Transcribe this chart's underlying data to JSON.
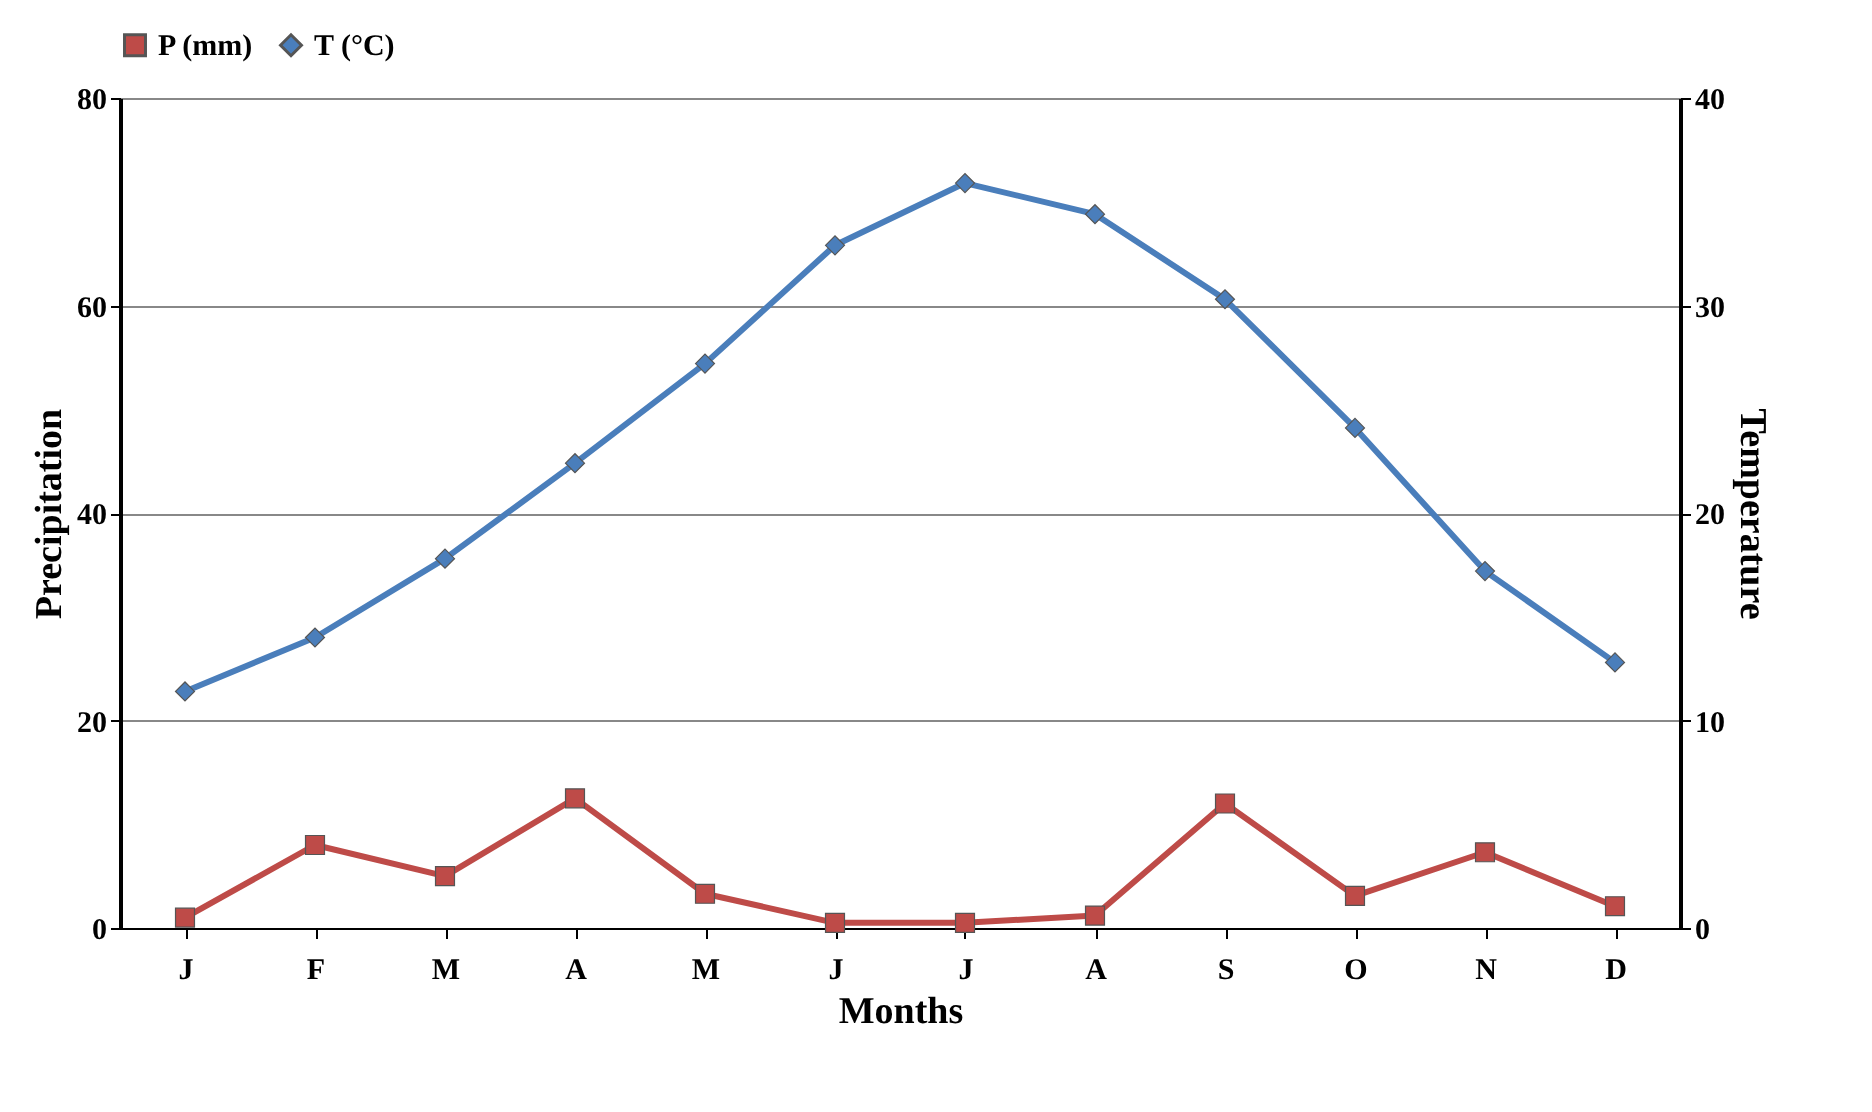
{
  "chart_data": {
    "type": "line",
    "xlabel": "Months",
    "ylabel": "Precipitation",
    "y2label": "Temperature",
    "categories": [
      "J",
      "F",
      "M",
      "A",
      "M",
      "J",
      "J",
      "A",
      "S",
      "O",
      "N",
      "D"
    ],
    "series": [
      {
        "name": "P (mm)",
        "color": "#be4b48",
        "marker": "square",
        "values": [
          1.0,
          8.0,
          5.0,
          12.5,
          3.3,
          0.5,
          0.5,
          1.2,
          12.0,
          3.1,
          7.3,
          2.1
        ]
      },
      {
        "name": "T (°C)",
        "color": "#4a7ebb",
        "marker": "diamond",
        "axis": "y2",
        "values": [
          11.4,
          14.0,
          17.8,
          22.4,
          27.2,
          32.9,
          35.9,
          34.4,
          30.3,
          24.1,
          17.2,
          12.8
        ]
      }
    ],
    "ylim": [
      0,
      80
    ],
    "yticks": [
      0,
      20,
      40,
      60,
      80
    ],
    "y2lim": [
      0,
      40
    ],
    "y2ticks": [
      0,
      10,
      20,
      30,
      40
    ],
    "grid": "y",
    "legend": "top"
  }
}
